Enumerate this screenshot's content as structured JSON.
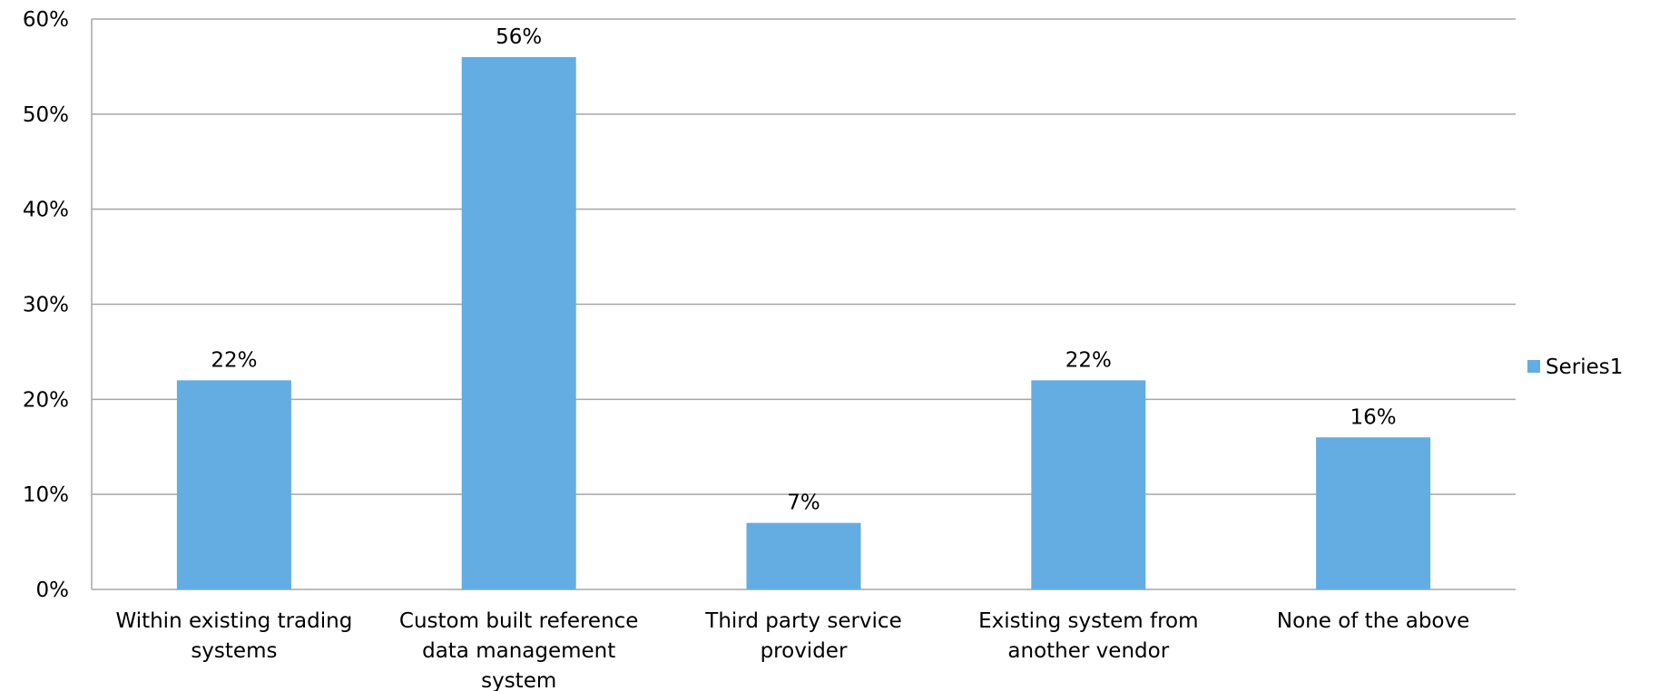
{
  "chart_data": {
    "type": "bar",
    "categories": [
      [
        "Within existing trading",
        "systems"
      ],
      [
        "Custom built reference",
        "data management",
        "system"
      ],
      [
        "Third party service",
        "provider"
      ],
      [
        "Existing system from",
        "another vendor"
      ],
      [
        "None of the above"
      ]
    ],
    "series": [
      {
        "name": "Series1",
        "values": [
          22,
          56,
          7,
          22,
          16
        ],
        "data_labels": [
          "22%",
          "56%",
          "7%",
          "22%",
          "16%"
        ],
        "color": "#63ADE3"
      }
    ],
    "ylim": [
      0,
      60
    ],
    "yticks": [
      0,
      10,
      20,
      30,
      40,
      50,
      60
    ],
    "ytick_labels": [
      "0%",
      "10%",
      "20%",
      "30%",
      "40%",
      "50%",
      "60%"
    ],
    "grid": true,
    "legend_position": "right",
    "gridline_color": "#A6A6A6"
  }
}
